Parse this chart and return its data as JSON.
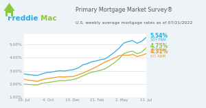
{
  "title": "Primary Mortgage Market Survey®",
  "subtitle": "U.S. weekly average mortgage rates as of 07/21/2022",
  "bg_color": "#eef3f7",
  "plot_bg_color": "#ffffff",
  "x_labels": [
    "26. Jul",
    "4. Oct",
    "13. Dec",
    "21. Feb",
    "2. May",
    "11. Jul"
  ],
  "ylim": [
    1.0,
    5.8
  ],
  "ytick_labels": [
    "5.00%",
    "4.00%",
    "3.00%",
    "2.00%",
    "1.00%"
  ],
  "ytick_vals": [
    5.0,
    4.0,
    3.0,
    2.0,
    1.0
  ],
  "series": [
    {
      "name": "30Y FRM",
      "color": "#29aae1",
      "final_value": "5.54%",
      "data": [
        2.78,
        2.72,
        2.68,
        2.65,
        2.77,
        2.87,
        2.9,
        2.97,
        3.01,
        2.99,
        3.05,
        3.1,
        3.22,
        3.45,
        3.55,
        3.69,
        3.76,
        3.85,
        3.92,
        4.16,
        4.42,
        4.72,
        5.1,
        5.23,
        5.3,
        5.09,
        5.25,
        5.54
      ]
    },
    {
      "name": "15Y FRM",
      "color": "#8dc63f",
      "final_value": "4.75%",
      "data": [
        2.0,
        1.97,
        1.95,
        1.93,
        2.05,
        2.1,
        2.15,
        2.2,
        2.27,
        2.25,
        2.3,
        2.35,
        2.46,
        2.62,
        2.77,
        2.9,
        2.97,
        3.05,
        3.17,
        3.39,
        3.63,
        3.91,
        4.3,
        4.43,
        4.5,
        4.3,
        4.43,
        4.75
      ]
    },
    {
      "name": "5/1 ARM",
      "color": "#f7941d",
      "final_value": "4.31%",
      "data": [
        2.37,
        2.3,
        2.25,
        2.2,
        2.32,
        2.4,
        2.45,
        2.5,
        2.55,
        2.53,
        2.57,
        2.58,
        2.7,
        2.83,
        2.98,
        3.14,
        3.3,
        3.5,
        3.69,
        3.83,
        3.98,
        4.15,
        4.2,
        4.18,
        4.25,
        4.09,
        4.18,
        4.31
      ]
    }
  ],
  "logo_blue": "#29aae1",
  "logo_green": "#8dc63f",
  "text_color": "#58595b",
  "grid_color": "#d0d8de",
  "tick_color": "#888888"
}
